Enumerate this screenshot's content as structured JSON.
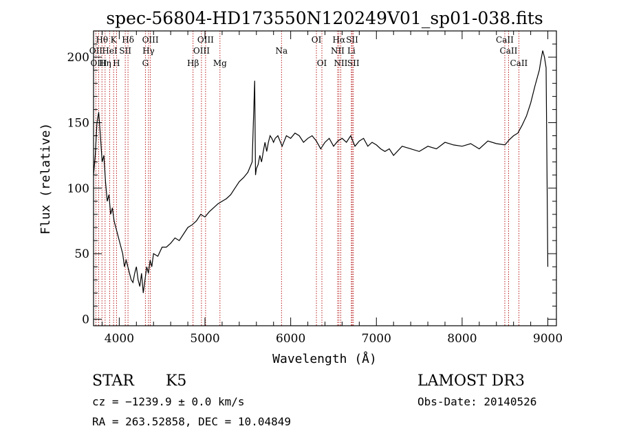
{
  "chart_data": {
    "type": "line",
    "title": "spec-56804-HD173550N120249V01_sp01-038.fits",
    "xlabel": "Wavelength (Å)",
    "ylabel": "Flux (relative)",
    "xlim": [
      3700,
      9100
    ],
    "ylim": [
      -5,
      220
    ],
    "x_ticks": [
      4000,
      5000,
      6000,
      7000,
      8000,
      9000
    ],
    "y_ticks": [
      0,
      50,
      100,
      150,
      200
    ],
    "grid": false,
    "series": [
      {
        "x": [
          3700,
          3720,
          3740,
          3760,
          3780,
          3800,
          3820,
          3840,
          3860,
          3880,
          3900,
          3920,
          3940,
          3960,
          3980,
          4000,
          4020,
          4040,
          4060,
          4080,
          4100,
          4120,
          4140,
          4160,
          4180,
          4200,
          4220,
          4240,
          4260,
          4280,
          4300,
          4320,
          4340,
          4360,
          4380,
          4400,
          4450,
          4500,
          4550,
          4600,
          4650,
          4700,
          4750,
          4800,
          4850,
          4900,
          4950,
          5000,
          5050,
          5100,
          5150,
          5200,
          5250,
          5300,
          5350,
          5400,
          5450,
          5500,
          5550,
          5580,
          5590,
          5600,
          5620,
          5640,
          5660,
          5680,
          5700,
          5720,
          5740,
          5760,
          5780,
          5800,
          5820,
          5850,
          5900,
          5950,
          6000,
          6050,
          6100,
          6150,
          6200,
          6250,
          6300,
          6350,
          6400,
          6450,
          6500,
          6550,
          6600,
          6650,
          6700,
          6750,
          6800,
          6850,
          6900,
          6950,
          7000,
          7050,
          7100,
          7150,
          7200,
          7300,
          7400,
          7500,
          7600,
          7700,
          7800,
          7900,
          8000,
          8100,
          8200,
          8300,
          8400,
          8500,
          8550,
          8600,
          8650,
          8700,
          8750,
          8800,
          8850,
          8900,
          8920,
          8940,
          8960,
          8980,
          9000
        ],
        "y": [
          110,
          125,
          150,
          158,
          140,
          120,
          125,
          105,
          90,
          95,
          80,
          85,
          75,
          70,
          65,
          60,
          55,
          50,
          40,
          45,
          40,
          35,
          30,
          28,
          35,
          40,
          30,
          25,
          35,
          20,
          30,
          40,
          35,
          45,
          40,
          50,
          48,
          55,
          55,
          58,
          62,
          60,
          65,
          70,
          72,
          75,
          80,
          78,
          82,
          85,
          88,
          90,
          92,
          95,
          100,
          105,
          108,
          112,
          120,
          182,
          110,
          115,
          118,
          125,
          120,
          128,
          135,
          128,
          135,
          140,
          138,
          135,
          138,
          140,
          132,
          140,
          138,
          142,
          140,
          135,
          138,
          140,
          136,
          130,
          135,
          138,
          132,
          136,
          138,
          135,
          140,
          132,
          136,
          138,
          132,
          135,
          133,
          130,
          128,
          130,
          125,
          132,
          130,
          128,
          132,
          130,
          135,
          133,
          132,
          134,
          130,
          136,
          134,
          133,
          137,
          140,
          142,
          148,
          155,
          165,
          178,
          190,
          198,
          205,
          200,
          192,
          40
        ]
      }
    ],
    "line_markers": [
      {
        "label": "Hθ",
        "x": 3798,
        "row": 1
      },
      {
        "label": "OII",
        "x": 3727,
        "row": 2
      },
      {
        "label": "OIII",
        "x": 3760,
        "row": 3
      },
      {
        "label": "K",
        "x": 3934,
        "row": 1
      },
      {
        "label": "HeI",
        "x": 3889,
        "row": 2
      },
      {
        "label": "Hη",
        "x": 3835,
        "row": 3
      },
      {
        "label": "SII",
        "x": 4070,
        "row": 2
      },
      {
        "label": "H",
        "x": 3968,
        "row": 3
      },
      {
        "label": "Hδ",
        "x": 4102,
        "row": 1
      },
      {
        "label": "OIII",
        "x": 4363,
        "row": 1
      },
      {
        "label": "Hγ",
        "x": 4341,
        "row": 2
      },
      {
        "label": "G",
        "x": 4305,
        "row": 3
      },
      {
        "label": "OIII",
        "x": 5007,
        "row": 1
      },
      {
        "label": "OIII",
        "x": 4959,
        "row": 2
      },
      {
        "label": "Hβ",
        "x": 4861,
        "row": 3
      },
      {
        "label": "Mg",
        "x": 5175,
        "row": 3
      },
      {
        "label": "Na",
        "x": 5893,
        "row": 2
      },
      {
        "label": "OI",
        "x": 6300,
        "row": 1
      },
      {
        "label": "OI",
        "x": 6364,
        "row": 3
      },
      {
        "label": "Hα",
        "x": 6563,
        "row": 1
      },
      {
        "label": "NII",
        "x": 6548,
        "row": 2
      },
      {
        "label": "NII",
        "x": 6584,
        "row": 3
      },
      {
        "label": "SII",
        "x": 6717,
        "row": 1
      },
      {
        "label": "Li",
        "x": 6708,
        "row": 2
      },
      {
        "label": "SII",
        "x": 6731,
        "row": 3
      },
      {
        "label": "CaII",
        "x": 8498,
        "row": 1
      },
      {
        "label": "CaII",
        "x": 8542,
        "row": 2
      },
      {
        "label": "CaII",
        "x": 8662,
        "row": 3
      }
    ]
  },
  "info": {
    "class_label": "STAR",
    "subclass": "K5",
    "survey": "LAMOST DR3",
    "cz_line": "cz = −1239.9 ± 0.0 km/s",
    "obs_date": "Obs-Date: 20140526",
    "radec": "RA = 263.52858, DEC =  10.04849"
  },
  "colors": {
    "line_marker": "#b00000",
    "spectrum": "#000000",
    "axes": "#000000"
  }
}
